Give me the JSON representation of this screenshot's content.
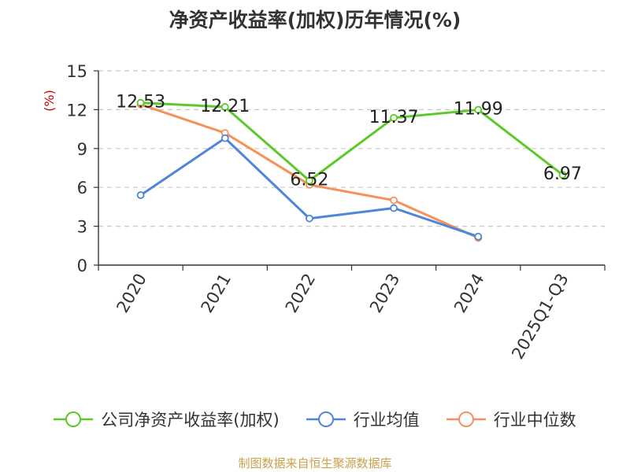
{
  "chart_data": {
    "type": "line",
    "title": "净资产收益率(加权)历年情况(%)",
    "ylabel": "(%)",
    "categories": [
      "2020",
      "2021",
      "2022",
      "2023",
      "2024",
      "2025Q1-Q3"
    ],
    "ylim": [
      0,
      15
    ],
    "yticks": [
      "0",
      "3",
      "6",
      "9",
      "12",
      "15"
    ],
    "grid": true,
    "legend_position": "bottom",
    "series": [
      {
        "name": "公司净资产收益率(加权)",
        "color": "#5cc928",
        "values": [
          12.53,
          12.21,
          6.52,
          11.37,
          11.99,
          6.97
        ],
        "labels": [
          "12.53",
          "12.21",
          "6.52",
          "11.37",
          "11.99",
          "6.97"
        ]
      },
      {
        "name": "行业均值",
        "color": "#4f86d9",
        "values": [
          5.4,
          9.8,
          3.6,
          4.4,
          2.2,
          null
        ]
      },
      {
        "name": "行业中位数",
        "color": "#f5915b",
        "values": [
          12.4,
          10.2,
          6.2,
          5.0,
          2.1,
          null
        ]
      }
    ]
  },
  "footer": {
    "source": "制图数据来自恒生聚源数据库"
  }
}
